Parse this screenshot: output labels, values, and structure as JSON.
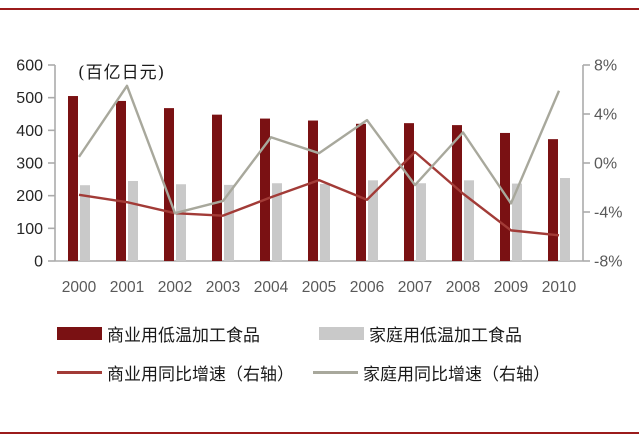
{
  "page": {
    "border_color": "#9B1B1B"
  },
  "chart_data": {
    "type": "bar+line",
    "title": "",
    "unit_label": "(百亿日元)",
    "categories": [
      "2000",
      "2001",
      "2002",
      "2003",
      "2004",
      "2005",
      "2006",
      "2007",
      "2008",
      "2009",
      "2010"
    ],
    "series": [
      {
        "key": "commercial-volume",
        "name": "商业用低温加工食品",
        "type": "bar",
        "axis": "left",
        "color": "#7A1113",
        "values": [
          505,
          490,
          468,
          448,
          436,
          430,
          420,
          422,
          416,
          392,
          373
        ]
      },
      {
        "key": "household-volume",
        "name": "家庭用低温加工食品",
        "type": "bar",
        "axis": "left",
        "color": "#C9C9C9",
        "values": [
          232,
          245,
          235,
          233,
          238,
          236,
          247,
          238,
          247,
          237,
          254
        ]
      },
      {
        "key": "commercial-growth",
        "name": "商业用同比增速（右轴）",
        "type": "line",
        "axis": "right",
        "color": "#A23B37",
        "values": [
          -2.6,
          -3.2,
          -4.1,
          -4.3,
          -2.8,
          -1.4,
          -3.0,
          0.9,
          -2.5,
          -5.5,
          -5.9
        ]
      },
      {
        "key": "household-growth",
        "name": "家庭用同比增速（右轴）",
        "type": "line",
        "axis": "right",
        "color": "#A8A89C",
        "values": [
          0.5,
          6.3,
          -4.1,
          -3.1,
          2.1,
          0.8,
          3.5,
          -1.8,
          2.5,
          -3.3,
          5.9
        ]
      }
    ],
    "left_axis": {
      "min": 0,
      "max": 600,
      "ticks": [
        600,
        500,
        400,
        300,
        200,
        100,
        0
      ]
    },
    "right_axis": {
      "min": -8,
      "max": 8,
      "ticks": [
        8,
        4,
        0,
        -4,
        -8
      ],
      "suffix": "%"
    },
    "grid": false,
    "legend_position": "bottom"
  }
}
